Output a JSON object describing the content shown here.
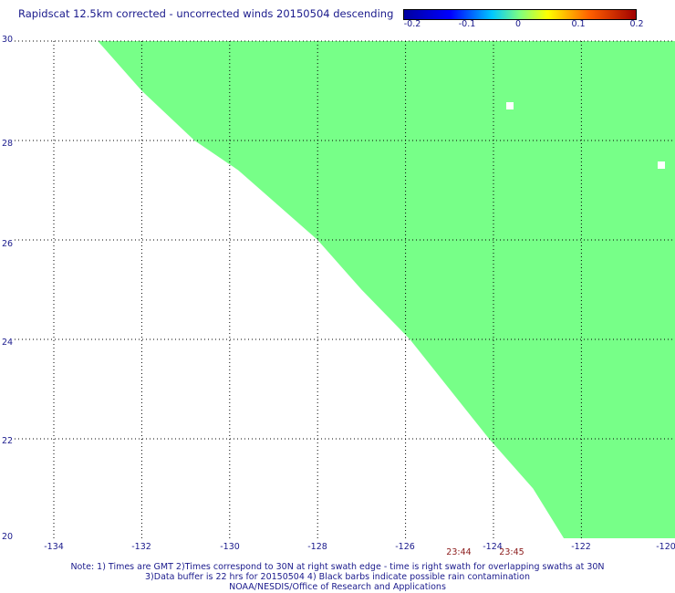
{
  "title": "Rapidscat 12.5km corrected - uncorrected winds 20150504 descending",
  "colorbar": {
    "ticks": [
      "-0.2",
      "-0.1",
      "0",
      "0.1",
      "0.2"
    ],
    "colors": [
      "#0000a0",
      "#0000ff",
      "#00c8ff",
      "#7fff7f",
      "#ffff00",
      "#ff6000",
      "#a00000"
    ]
  },
  "map": {
    "fill_color": "#77ff88",
    "lat_ticks": [
      "30",
      "28",
      "26",
      "24",
      "22",
      "20"
    ],
    "lon_ticks": [
      "-134",
      "-132",
      "-130",
      "-128",
      "-126",
      "-124",
      "-122",
      "-120"
    ],
    "times": [
      "23:44",
      "23:45"
    ],
    "swath_edge": [
      {
        "lat": 30.0,
        "lon": -133.0
      },
      {
        "lat": 29.0,
        "lon": -132.0
      },
      {
        "lat": 28.0,
        "lon": -130.8
      },
      {
        "lat": 27.4,
        "lon": -129.8
      },
      {
        "lat": 26.0,
        "lon": -128.0
      },
      {
        "lat": 25.0,
        "lon": -127.0
      },
      {
        "lat": 24.0,
        "lon": -125.9
      },
      {
        "lat": 23.0,
        "lon": -125.0
      },
      {
        "lat": 22.0,
        "lon": -124.1
      },
      {
        "lat": 21.0,
        "lon": -123.1
      },
      {
        "lat": 20.0,
        "lon": -122.4
      }
    ]
  },
  "notes": [
    "Note: 1) Times are GMT 2)Times correspond to 30N at right swath edge - time is right swath for overlapping swaths at 30N",
    "3)Data buffer is 22 hrs for 20150504 4) Black barbs indicate possible rain contamination",
    "NOAA/NESDIS/Office of Research and Applications"
  ]
}
